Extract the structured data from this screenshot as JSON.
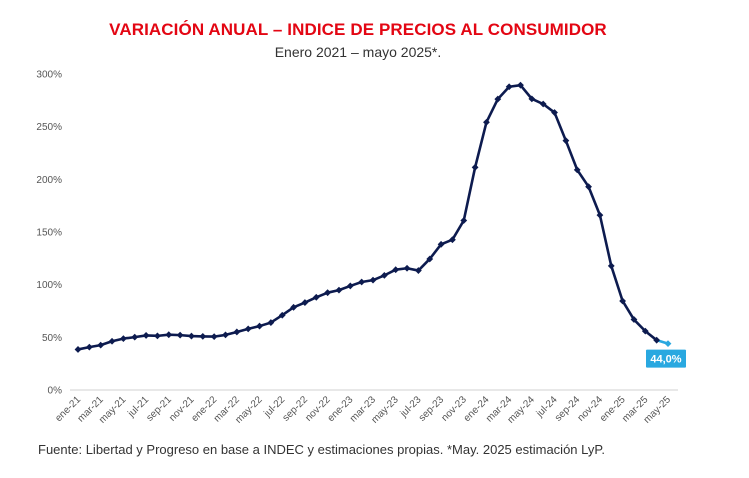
{
  "chart_data": {
    "type": "line",
    "title": "VARIACIÓN ANUAL – INDICE DE PRECIOS AL CONSUMIDOR",
    "subtitle": "Enero 2021 – mayo 2025*.",
    "ylim": [
      0,
      300
    ],
    "yticks": [
      "0%",
      "50%",
      "100%",
      "150%",
      "200%",
      "250%",
      "300%"
    ],
    "x_tick_labels": [
      "ene-21",
      "mar-21",
      "may-21",
      "jul-21",
      "sep-21",
      "nov-21",
      "ene-22",
      "mar-22",
      "may-22",
      "jul-22",
      "sep-22",
      "nov-22",
      "ene-23",
      "mar-23",
      "may-23",
      "jul-23",
      "sep-23",
      "nov-23",
      "ene-24",
      "mar-24",
      "may-24",
      "jul-24",
      "sep-24",
      "nov-24",
      "ene-25",
      "mar-25",
      "may-25"
    ],
    "categories": [
      "ene-21",
      "feb-21",
      "mar-21",
      "abr-21",
      "may-21",
      "jun-21",
      "jul-21",
      "ago-21",
      "sep-21",
      "oct-21",
      "nov-21",
      "dic-21",
      "ene-22",
      "feb-22",
      "mar-22",
      "abr-22",
      "may-22",
      "jun-22",
      "jul-22",
      "ago-22",
      "sep-22",
      "oct-22",
      "nov-22",
      "dic-22",
      "ene-23",
      "feb-23",
      "mar-23",
      "abr-23",
      "may-23",
      "jun-23",
      "jul-23",
      "ago-23",
      "sep-23",
      "oct-23",
      "nov-23",
      "dic-23",
      "ene-24",
      "feb-24",
      "mar-24",
      "abr-24",
      "may-24",
      "jun-24",
      "jul-24",
      "ago-24",
      "sep-24",
      "oct-24",
      "nov-24",
      "dic-24",
      "ene-25",
      "feb-25",
      "mar-25",
      "abr-25",
      "may-25"
    ],
    "series": [
      {
        "values": [
          38.5,
          40.7,
          42.6,
          46.3,
          48.8,
          50.2,
          51.8,
          51.4,
          52.5,
          52.1,
          51.2,
          50.9,
          50.7,
          52.3,
          55.1,
          58.0,
          60.7,
          64.0,
          71.0,
          78.5,
          83.0,
          88.0,
          92.4,
          94.8,
          98.8,
          102.5,
          104.3,
          108.8,
          114.2,
          115.6,
          113.4,
          124.4,
          138.3,
          142.7,
          160.9,
          211.4,
          254.2,
          276.2,
          287.9,
          289.4,
          276.4,
          271.5,
          263.4,
          236.7,
          209.0,
          193.0,
          166.0,
          117.8,
          84.5,
          66.9,
          55.9,
          47.3,
          44.0
        ],
        "color": "#0d1b4f",
        "estimate_color": "#29a8e0"
      }
    ],
    "data_label": "44,0%",
    "grid": false
  },
  "source": "Fuente: Libertad y Progreso en base a INDEC y estimaciones propias. *May. 2025 estimación LyP."
}
